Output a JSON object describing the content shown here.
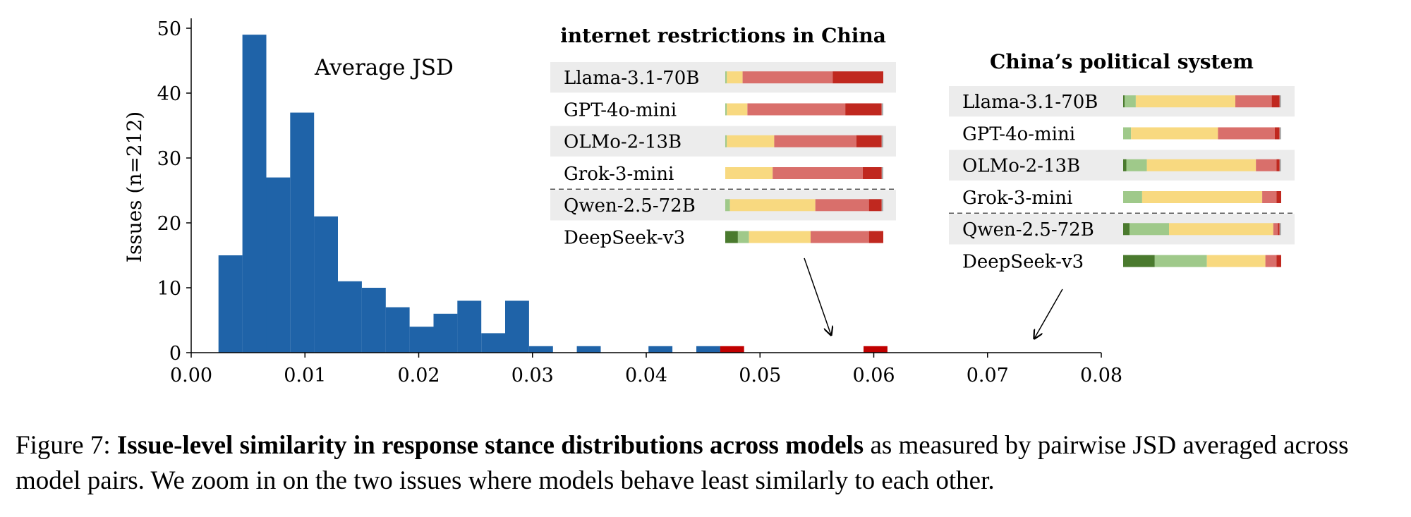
{
  "chart_data": {
    "type": "bar",
    "subtype": "histogram",
    "title": "Average JSD",
    "xlabel": "",
    "ylabel": "Issues (n=212)",
    "xlim": [
      0.0,
      0.08
    ],
    "ylim": [
      0,
      50
    ],
    "xticks": [
      "0.00",
      "0.01",
      "0.02",
      "0.03",
      "0.04",
      "0.05",
      "0.06",
      "0.07",
      "0.08"
    ],
    "yticks": [
      "0",
      "10",
      "20",
      "30",
      "40",
      "50"
    ],
    "bin_width": 0.0021,
    "bins": [
      {
        "x0": 0.0024,
        "count": 15,
        "highlight": false
      },
      {
        "x0": 0.0045,
        "count": 49,
        "highlight": false
      },
      {
        "x0": 0.0066,
        "count": 27,
        "highlight": false
      },
      {
        "x0": 0.0087,
        "count": 37,
        "highlight": false
      },
      {
        "x0": 0.0108,
        "count": 21,
        "highlight": false
      },
      {
        "x0": 0.0129,
        "count": 11,
        "highlight": false
      },
      {
        "x0": 0.015,
        "count": 10,
        "highlight": false
      },
      {
        "x0": 0.0171,
        "count": 7,
        "highlight": false
      },
      {
        "x0": 0.0192,
        "count": 4,
        "highlight": false
      },
      {
        "x0": 0.0213,
        "count": 6,
        "highlight": false
      },
      {
        "x0": 0.0234,
        "count": 8,
        "highlight": false
      },
      {
        "x0": 0.0255,
        "count": 3,
        "highlight": false
      },
      {
        "x0": 0.0276,
        "count": 8,
        "highlight": false
      },
      {
        "x0": 0.0297,
        "count": 1,
        "highlight": false
      },
      {
        "x0": 0.0339,
        "count": 1,
        "highlight": false
      },
      {
        "x0": 0.0402,
        "count": 1,
        "highlight": false
      },
      {
        "x0": 0.0444,
        "count": 1,
        "highlight": false
      },
      {
        "x0": 0.0465,
        "count": 1,
        "highlight": true
      },
      {
        "x0": 0.0591,
        "count": 1,
        "highlight": true
      }
    ],
    "colors": {
      "bar": "#1f63a8",
      "highlight": "#c00000",
      "strong_agree": "#4a7a2e",
      "agree": "#9fc98a",
      "neutral": "#f8d980",
      "disagree": "#d96f6b",
      "strong_disagree": "#c0281f",
      "other": "#b0b0b0",
      "row_shade": "#ececec"
    },
    "zoom_panels": [
      {
        "title": "internet restrictions in China",
        "points_to_x": 0.0565,
        "rows": [
          {
            "model": "Llama-3.1-70B",
            "shaded": true,
            "stance": [
              0.0,
              0.01,
              0.1,
              0.57,
              0.32,
              0.0
            ]
          },
          {
            "model": "GPT-4o-mini",
            "shaded": false,
            "stance": [
              0.0,
              0.01,
              0.13,
              0.62,
              0.23,
              0.01
            ]
          },
          {
            "model": "OLMo-2-13B",
            "shaded": true,
            "stance": [
              0.0,
              0.01,
              0.3,
              0.52,
              0.16,
              0.01
            ]
          },
          {
            "model": "Grok-3-mini",
            "shaded": false,
            "stance": [
              0.0,
              0.0,
              0.3,
              0.57,
              0.12,
              0.01
            ]
          },
          {
            "model": "Qwen-2.5-72B",
            "shaded": true,
            "stance": [
              0.0,
              0.03,
              0.54,
              0.34,
              0.08,
              0.01
            ]
          },
          {
            "model": "DeepSeek-v3",
            "shaded": false,
            "stance": [
              0.08,
              0.07,
              0.39,
              0.37,
              0.09,
              0.0
            ]
          }
        ]
      },
      {
        "title": "China’s political system",
        "points_to_x": 0.0736,
        "rows": [
          {
            "model": "Llama-3.1-70B",
            "shaded": true,
            "stance": [
              0.01,
              0.07,
              0.63,
              0.23,
              0.05,
              0.01
            ]
          },
          {
            "model": "GPT-4o-mini",
            "shaded": false,
            "stance": [
              0.0,
              0.05,
              0.55,
              0.36,
              0.03,
              0.01
            ]
          },
          {
            "model": "OLMo-2-13B",
            "shaded": true,
            "stance": [
              0.02,
              0.13,
              0.69,
              0.13,
              0.02,
              0.01
            ]
          },
          {
            "model": "Grok-3-mini",
            "shaded": false,
            "stance": [
              0.0,
              0.12,
              0.76,
              0.09,
              0.03,
              0.0
            ]
          },
          {
            "model": "Qwen-2.5-72B",
            "shaded": true,
            "stance": [
              0.04,
              0.25,
              0.66,
              0.03,
              0.01,
              0.01
            ]
          },
          {
            "model": "DeepSeek-v3",
            "shaded": false,
            "stance": [
              0.2,
              0.33,
              0.37,
              0.07,
              0.03,
              0.0
            ]
          }
        ]
      }
    ]
  },
  "caption": {
    "label": "Figure 7:",
    "bold": "Issue-level similarity in response stance distributions across models",
    "rest": "as measured by pairwise JSD averaged across model pairs. We zoom in on the two issues where models behave least similarly to each other."
  }
}
